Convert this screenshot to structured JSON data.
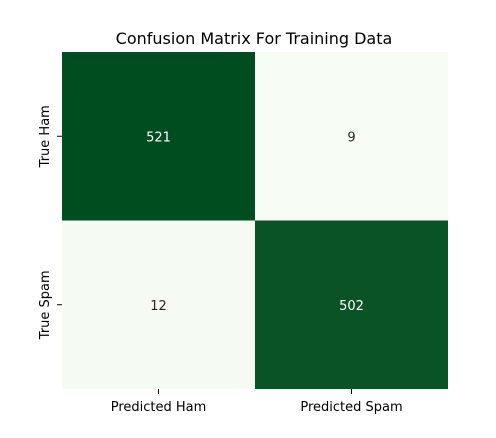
{
  "chart_data": {
    "type": "heatmap",
    "title": "Confusion Matrix For Training Data",
    "row_labels": [
      "True Ham",
      "True Spam"
    ],
    "col_labels": [
      "Predicted Ham",
      "Predicted Spam"
    ],
    "values": [
      [
        521,
        9
      ],
      [
        12,
        502
      ]
    ],
    "colormap": "Greens",
    "colorbar": false,
    "colors": {
      "dark": "#004d1f",
      "light": "#f6fbf3",
      "text_on_dark": "#ffffff",
      "text_on_light": "#262626"
    }
  }
}
